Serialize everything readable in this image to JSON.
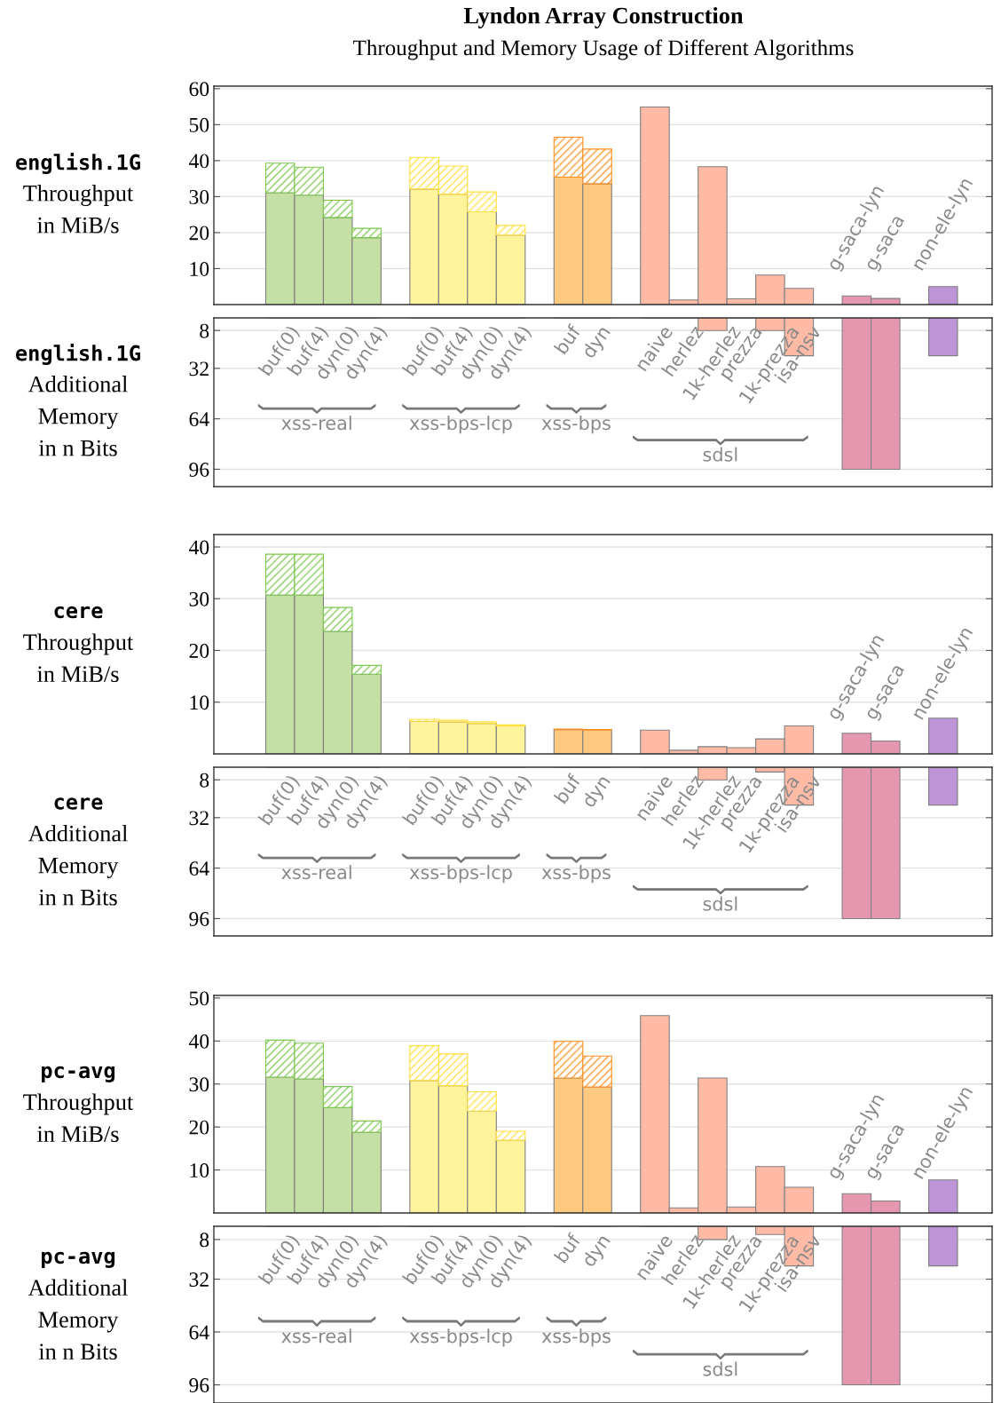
{
  "chart_data": [
    {
      "type": "bar",
      "stacked": true,
      "title": "Lyndon Array Construction",
      "subtitle": "Throughput and Memory Usage of Different Algorithms",
      "ylabel": "english.1G\nThroughput\nin MiB/s",
      "categories": [
        null,
        null,
        null,
        null,
        null,
        null,
        null,
        null,
        null,
        null,
        null,
        null,
        null,
        null,
        null,
        null,
        null,
        null,
        null,
        null,
        "g-saca-lyn",
        "g-saca",
        null,
        "non-ele-lyn"
      ],
      "series": [
        {
          "values": [
            31.1,
            30.4,
            24.2,
            18.6,
            null,
            32.1,
            30.7,
            25.8,
            19.3,
            null,
            35.4,
            33.6,
            null,
            54.9,
            1.3,
            38.3,
            1.6,
            8.2,
            4.5,
            null,
            2.4,
            1.7,
            null,
            5.0
          ],
          "colors": [
            "#c5e0a4",
            "#c5e0a4",
            "#c5e0a4",
            "#c5e0a4",
            null,
            "#fff39b",
            "#fff39b",
            "#fff39b",
            "#fff39b",
            null,
            "#ffc980",
            "#ffc980",
            null,
            "#ffbba5",
            "#ffbba5",
            "#ffbba5",
            "#ffbba5",
            "#ffbba5",
            "#ffbba5",
            null,
            "#e597b0",
            "#e597b0",
            null,
            "#bd94d6"
          ]
        },
        {
          "values": [
            8.2,
            7.8,
            4.8,
            2.6,
            null,
            8.8,
            7.8,
            5.5,
            2.7,
            null,
            11.1,
            9.6,
            null,
            null,
            null,
            null,
            null,
            null,
            null,
            null,
            null,
            null,
            null,
            null
          ],
          "colors": [
            "#7ec850",
            "#7ec850",
            "#7ec850",
            "#7ec850",
            null,
            "#ffe040",
            "#ffe040",
            "#ffe040",
            "#ffe040",
            null,
            "#ff9020",
            "#ff9020",
            null,
            null,
            null,
            null,
            null,
            null,
            null,
            null,
            null,
            null,
            null,
            null
          ]
        }
      ],
      "ylim": [
        0,
        60.7
      ],
      "yticks": [
        10,
        20,
        30,
        40,
        50,
        60
      ],
      "grid": "y"
    },
    {
      "type": "bar",
      "ylabel": "english.1G\nAdditional\nMemory\nin n Bits",
      "categories": [
        "buf(0)",
        "buf(4)",
        "dyn(0)",
        "dyn(4)",
        null,
        "buf(0)",
        "buf(4)",
        "dyn(0)",
        "dyn(4)",
        null,
        "buf",
        "dyn",
        null,
        "naive",
        "herlez",
        "1k-herlez",
        "prezza",
        "1k-prezza",
        "isa-nsv",
        null,
        null,
        null,
        null,
        null
      ],
      "values": [
        0,
        0,
        0,
        0,
        null,
        0,
        0,
        0,
        0,
        null,
        0,
        0,
        null,
        0,
        0,
        8,
        0,
        8,
        24,
        null,
        96,
        96,
        null,
        24
      ],
      "colors": [
        "#c5e0a4",
        "#c5e0a4",
        "#c5e0a4",
        "#c5e0a4",
        null,
        "#fff39b",
        "#fff39b",
        "#fff39b",
        "#fff39b",
        null,
        "#ffc980",
        "#ffc980",
        null,
        "#ffbba5",
        "#ffbba5",
        "#ffbba5",
        "#ffbba5",
        "#ffbba5",
        "#ffbba5",
        null,
        "#e597b0",
        "#e597b0",
        null,
        "#bd94d6"
      ],
      "annotations": [
        "xss-real",
        "xss-bps-lcp",
        "xss-bps",
        "sdsl"
      ],
      "ylim": [
        107,
        0
      ],
      "yticks": [
        8,
        32,
        64,
        96
      ],
      "grid": "y"
    },
    {
      "type": "bar",
      "stacked": true,
      "ylabel": "cere\nThroughput\nin MiB/s",
      "categories": [
        null,
        null,
        null,
        null,
        null,
        null,
        null,
        null,
        null,
        null,
        null,
        null,
        null,
        null,
        null,
        null,
        null,
        null,
        null,
        null,
        "g-saca-lyn",
        "g-saca",
        null,
        "non-ele-lyn"
      ],
      "series": [
        {
          "values": [
            30.7,
            30.7,
            23.7,
            15.4,
            null,
            6.3,
            6.2,
            5.9,
            5.4,
            null,
            4.7,
            4.6,
            null,
            4.6,
            0.7,
            1.4,
            1.2,
            2.9,
            5.4,
            null,
            4.0,
            2.5,
            null,
            6.9
          ],
          "colors": [
            "#c5e0a4",
            "#c5e0a4",
            "#c5e0a4",
            "#c5e0a4",
            null,
            "#fff39b",
            "#fff39b",
            "#fff39b",
            "#fff39b",
            null,
            "#ffc980",
            "#ffc980",
            null,
            "#ffbba5",
            "#ffbba5",
            "#ffbba5",
            "#ffbba5",
            "#ffbba5",
            "#ffbba5",
            null,
            "#e597b0",
            "#e597b0",
            null,
            "#bd94d6"
          ]
        },
        {
          "values": [
            7.9,
            7.9,
            4.6,
            1.7,
            null,
            0.4,
            0.3,
            0.3,
            0.2,
            null,
            0.1,
            0.1,
            null,
            null,
            null,
            null,
            null,
            null,
            null,
            null,
            null,
            null,
            null,
            null
          ],
          "colors": [
            "#7ec850",
            "#7ec850",
            "#7ec850",
            "#7ec850",
            null,
            "#ffe040",
            "#ffe040",
            "#ffe040",
            "#ffe040",
            null,
            "#ff9020",
            "#ff9020",
            null,
            null,
            null,
            null,
            null,
            null,
            null,
            null,
            null,
            null,
            null,
            null
          ]
        }
      ],
      "ylim": [
        0,
        42.4
      ],
      "yticks": [
        10,
        20,
        30,
        40
      ],
      "grid": "y"
    },
    {
      "type": "bar",
      "ylabel": "cere\nAdditional\nMemory\nin n Bits",
      "categories": [
        "buf(0)",
        "buf(4)",
        "dyn(0)",
        "dyn(4)",
        null,
        "buf(0)",
        "buf(4)",
        "dyn(0)",
        "dyn(4)",
        null,
        "buf",
        "dyn",
        null,
        "naive",
        "herlez",
        "1k-herlez",
        "prezza",
        "1k-prezza",
        "isa-nsv",
        null,
        null,
        null,
        null,
        null
      ],
      "values": [
        0,
        0,
        0,
        0,
        null,
        0,
        0,
        0,
        0,
        null,
        0,
        0,
        null,
        0,
        0,
        8,
        0,
        3,
        24,
        null,
        96,
        96,
        null,
        24
      ],
      "colors": [
        "#c5e0a4",
        "#c5e0a4",
        "#c5e0a4",
        "#c5e0a4",
        null,
        "#fff39b",
        "#fff39b",
        "#fff39b",
        "#fff39b",
        null,
        "#ffc980",
        "#ffc980",
        null,
        "#ffbba5",
        "#ffbba5",
        "#ffbba5",
        "#ffbba5",
        "#ffbba5",
        "#ffbba5",
        null,
        "#e597b0",
        "#e597b0",
        null,
        "#bd94d6"
      ],
      "annotations": [
        "xss-real",
        "xss-bps-lcp",
        "xss-bps",
        "sdsl"
      ],
      "ylim": [
        107,
        0
      ],
      "yticks": [
        8,
        32,
        64,
        96
      ],
      "grid": "y"
    },
    {
      "type": "bar",
      "stacked": true,
      "ylabel": "pc-avg\nThroughput\nin MiB/s",
      "categories": [
        null,
        null,
        null,
        null,
        null,
        null,
        null,
        null,
        null,
        null,
        null,
        null,
        null,
        null,
        null,
        null,
        null,
        null,
        null,
        null,
        "g-saca-lyn",
        "g-saca",
        null,
        "non-ele-lyn"
      ],
      "series": [
        {
          "values": [
            31.6,
            31.2,
            24.5,
            18.8,
            null,
            30.8,
            29.6,
            23.7,
            16.9,
            null,
            31.4,
            29.3,
            null,
            45.9,
            1.2,
            31.4,
            1.4,
            10.8,
            6.0,
            null,
            4.5,
            2.8,
            null,
            7.7
          ],
          "colors": [
            "#c5e0a4",
            "#c5e0a4",
            "#c5e0a4",
            "#c5e0a4",
            null,
            "#fff39b",
            "#fff39b",
            "#fff39b",
            "#fff39b",
            null,
            "#ffc980",
            "#ffc980",
            null,
            "#ffbba5",
            "#ffbba5",
            "#ffbba5",
            "#ffbba5",
            "#ffbba5",
            "#ffbba5",
            null,
            "#e597b0",
            "#e597b0",
            null,
            "#bd94d6"
          ]
        },
        {
          "values": [
            8.6,
            8.3,
            4.9,
            2.6,
            null,
            8.1,
            7.4,
            4.5,
            2.1,
            null,
            8.5,
            7.2,
            null,
            null,
            null,
            null,
            null,
            null,
            null,
            null,
            null,
            null,
            null,
            null
          ],
          "colors": [
            "#7ec850",
            "#7ec850",
            "#7ec850",
            "#7ec850",
            null,
            "#ffe040",
            "#ffe040",
            "#ffe040",
            "#ffe040",
            null,
            "#ff9020",
            "#ff9020",
            null,
            null,
            null,
            null,
            null,
            null,
            null,
            null,
            null,
            null,
            null,
            null
          ]
        }
      ],
      "ylim": [
        0,
        50.6
      ],
      "yticks": [
        10,
        20,
        30,
        40,
        50
      ],
      "grid": "y"
    },
    {
      "type": "bar",
      "ylabel": "pc-avg\nAdditional\nMemory\nin n Bits",
      "categories": [
        "buf(0)",
        "buf(4)",
        "dyn(0)",
        "dyn(4)",
        null,
        "buf(0)",
        "buf(4)",
        "dyn(0)",
        "dyn(4)",
        null,
        "buf",
        "dyn",
        null,
        "naive",
        "herlez",
        "1k-herlez",
        "prezza",
        "1k-prezza",
        "isa-nsv",
        null,
        null,
        null,
        null,
        null
      ],
      "values": [
        0,
        0,
        0,
        0,
        null,
        0,
        0,
        0,
        0,
        null,
        0,
        0,
        null,
        0,
        0,
        8,
        0,
        5,
        24,
        null,
        96,
        96,
        null,
        24
      ],
      "colors": [
        "#c5e0a4",
        "#c5e0a4",
        "#c5e0a4",
        "#c5e0a4",
        null,
        "#fff39b",
        "#fff39b",
        "#fff39b",
        "#fff39b",
        null,
        "#ffc980",
        "#ffc980",
        null,
        "#ffbba5",
        "#ffbba5",
        "#ffbba5",
        "#ffbba5",
        "#ffbba5",
        "#ffbba5",
        null,
        "#e597b0",
        "#e597b0",
        null,
        "#bd94d6"
      ],
      "annotations": [
        "xss-real",
        "xss-bps-lcp",
        "xss-bps",
        "sdsl"
      ],
      "ylim": [
        107,
        0
      ],
      "yticks": [
        8,
        32,
        64,
        96
      ],
      "grid": "y"
    }
  ]
}
